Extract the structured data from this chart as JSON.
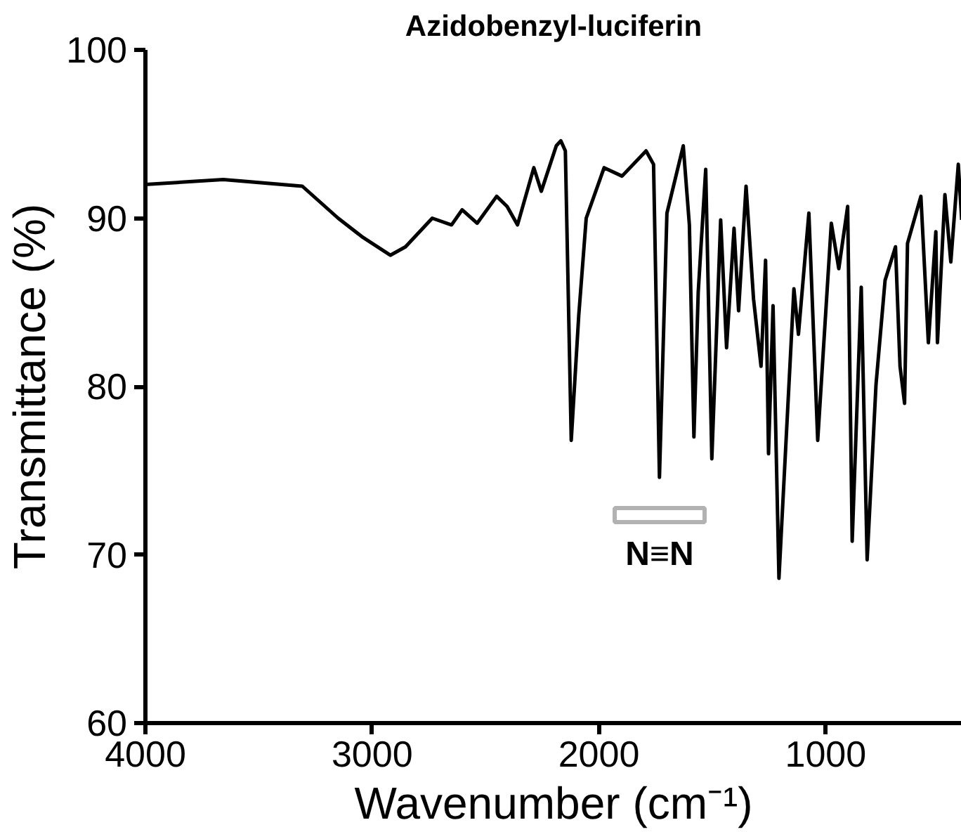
{
  "chart_data": {
    "type": "line",
    "title": "Azidobenzyl-luciferin",
    "xlabel": "Wavenumber (cm⁻¹)",
    "ylabel": "Transmittance (%)",
    "x": [
      4000,
      3657,
      3308,
      3150,
      3045,
      2920,
      2853,
      2735,
      2650,
      2603,
      2537,
      2451,
      2405,
      2359,
      2287,
      2254,
      2188,
      2168,
      2148,
      2122,
      2089,
      2056,
      1977,
      1898,
      1792,
      1759,
      1733,
      1700,
      1628,
      1601,
      1581,
      1562,
      1529,
      1502,
      1463,
      1437,
      1404,
      1384,
      1351,
      1318,
      1285,
      1265,
      1252,
      1232,
      1206,
      1140,
      1120,
      1074,
      1035,
      975,
      942,
      903,
      883,
      843,
      817,
      778,
      738,
      692,
      672,
      652,
      639,
      580,
      547,
      514,
      507,
      474,
      448,
      415,
      400
    ],
    "series": [
      {
        "color": "#000000",
        "values": [
          92.0,
          92.3,
          91.9,
          90.0,
          88.9,
          87.8,
          88.3,
          90.0,
          89.6,
          90.5,
          89.7,
          91.3,
          90.7,
          89.6,
          93.0,
          91.6,
          94.3,
          94.6,
          94.0,
          76.8,
          84.2,
          90.0,
          93.0,
          92.5,
          94.0,
          93.2,
          74.6,
          90.3,
          94.3,
          89.6,
          77.0,
          85.6,
          92.9,
          75.7,
          89.9,
          82.3,
          89.4,
          84.5,
          91.9,
          85.2,
          81.2,
          87.5,
          76.0,
          84.8,
          68.6,
          85.8,
          83.1,
          90.3,
          76.8,
          89.7,
          87.0,
          90.7,
          70.8,
          85.9,
          69.7,
          80.1,
          86.3,
          88.3,
          81.2,
          79.0,
          88.5,
          91.3,
          82.6,
          89.2,
          82.6,
          91.4,
          87.4,
          93.2,
          89.9
        ]
      }
    ],
    "xlim": [
      4000,
      400
    ],
    "xticks": [
      4000,
      3000,
      2000,
      1000
    ],
    "ylim": [
      60,
      100
    ],
    "yticks": [
      60,
      70,
      80,
      90,
      100
    ],
    "annotations": [
      "N≡N"
    ],
    "grid": false,
    "marker": "none",
    "line_style": "solid"
  }
}
